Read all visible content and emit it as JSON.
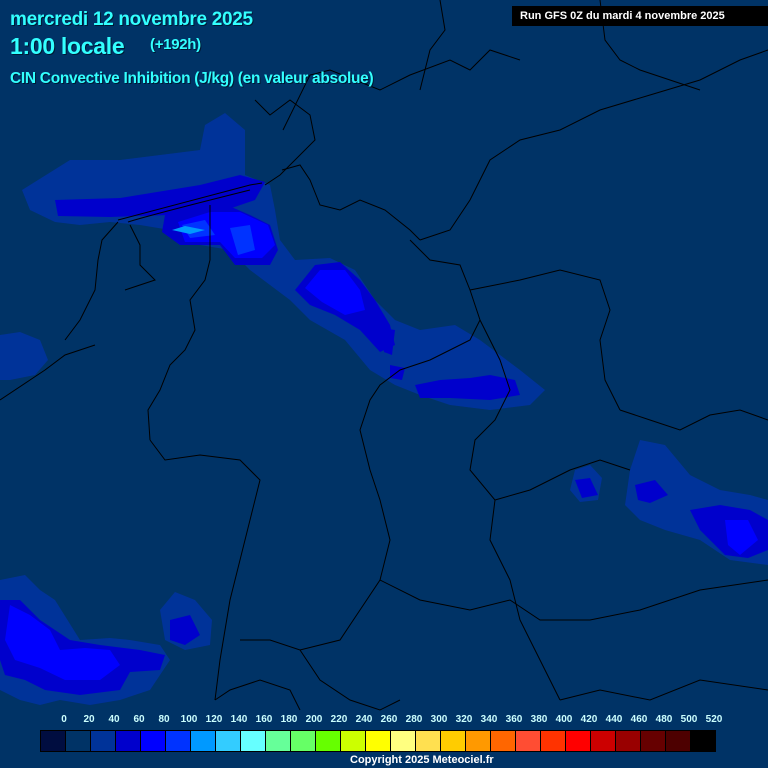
{
  "header": {
    "date": "mercredi 12 novembre 2025",
    "local_time": "1:00 locale",
    "lead_time": "(+192h)",
    "parameter": "CIN Convective Inhibition (J/kg) (en valeur absolue)",
    "run": "Run GFS 0Z du mardi 4 novembre 2025"
  },
  "legend": {
    "labels": [
      "0",
      "20",
      "40",
      "60",
      "80",
      "100",
      "120",
      "140",
      "160",
      "180",
      "200",
      "220",
      "240",
      "260",
      "280",
      "300",
      "320",
      "340",
      "360",
      "380",
      "400",
      "420",
      "440",
      "460",
      "480",
      "500",
      "520"
    ],
    "colors": [
      "#000d40",
      "#003366",
      "#003399",
      "#0000cc",
      "#0000ff",
      "#0033ff",
      "#0099ff",
      "#33ccff",
      "#66ffff",
      "#66ff99",
      "#66ff66",
      "#66ff00",
      "#ccff00",
      "#ffff00",
      "#ffff80",
      "#ffe050",
      "#ffcc00",
      "#ff9900",
      "#ff6600",
      "#ff4d33",
      "#ff3300",
      "#ff0000",
      "#cc0000",
      "#990000",
      "#660000",
      "#4d0000",
      "#000000"
    ]
  },
  "map": {
    "background_color": "#003366",
    "border_color": "#000000"
  },
  "footer": {
    "copyright": "Copyright 2025 Meteociel.fr"
  }
}
